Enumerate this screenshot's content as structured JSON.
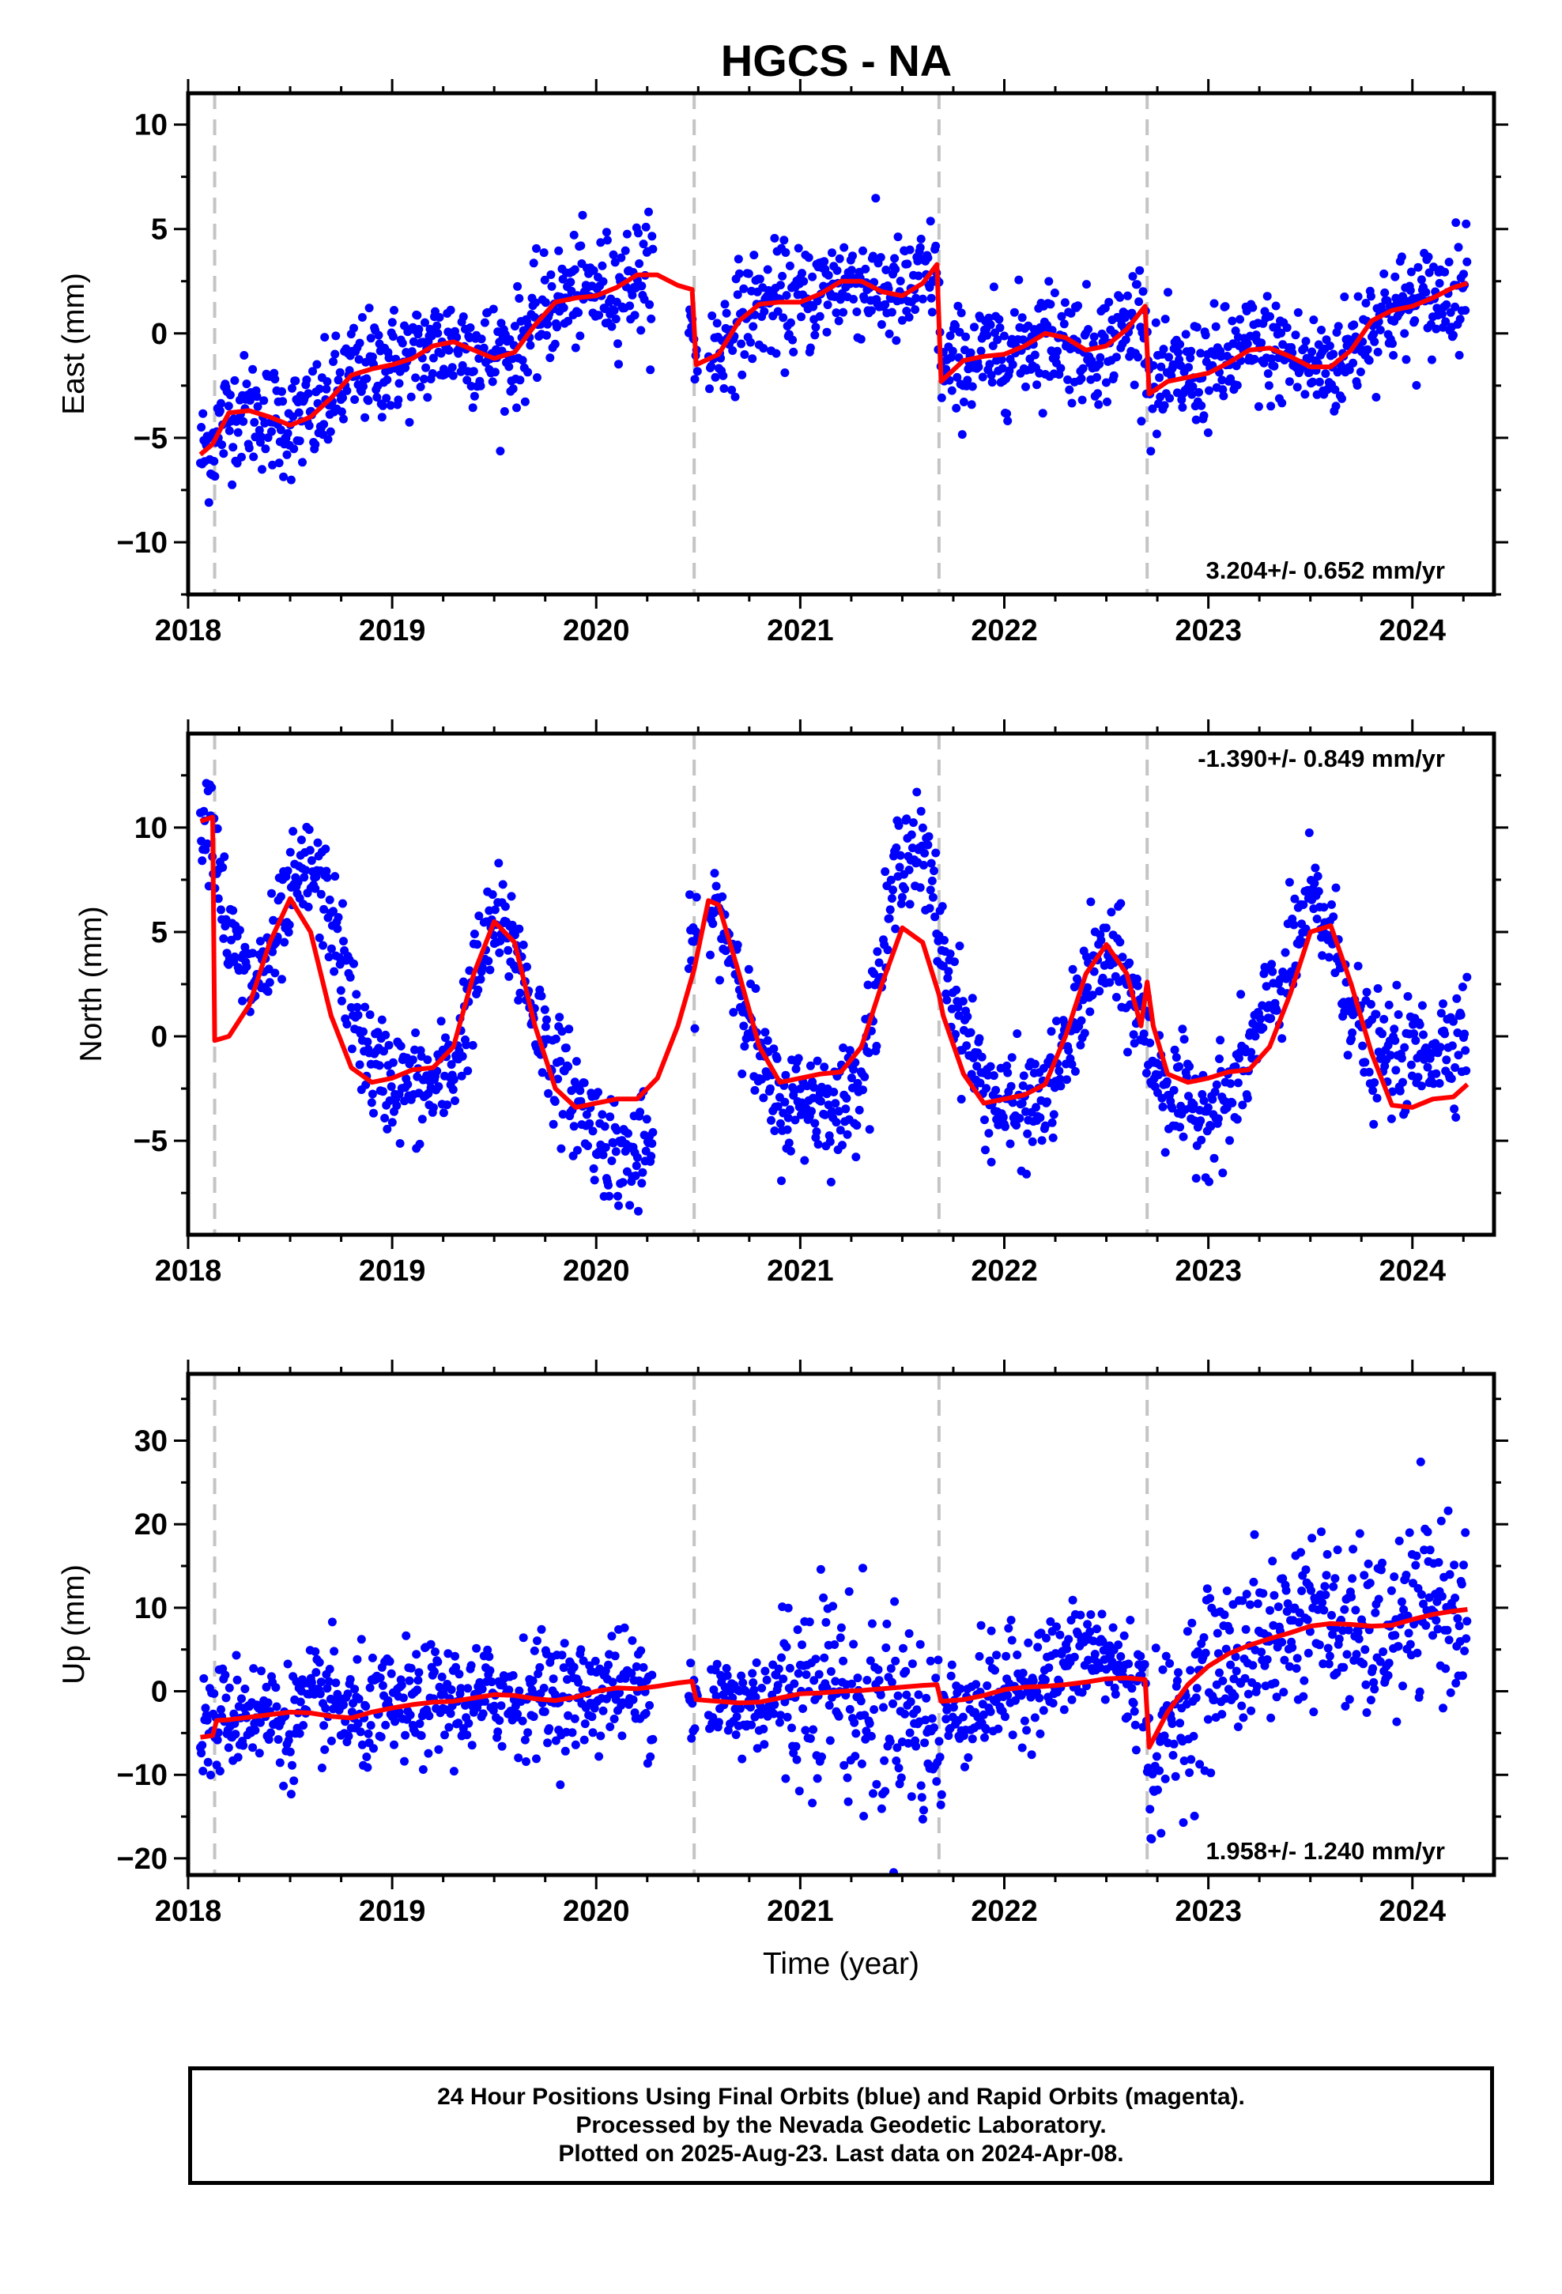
{
  "chart_data": [
    {
      "type": "scatter",
      "title": "HGCS - NA",
      "panel": "east",
      "ylabel": "East (mm)",
      "xlabel": "",
      "xlim": [
        2018.0,
        2024.4
      ],
      "ylim": [
        -12.5,
        11.5
      ],
      "x_ticks": [
        2018,
        2019,
        2020,
        2021,
        2022,
        2023,
        2024
      ],
      "y_ticks": [
        -10,
        -5,
        0,
        5,
        10
      ],
      "y_tick_labels": [
        "−10",
        "−5",
        "0",
        "5",
        "10"
      ],
      "rate_label": "3.204+/- 0.652 mm/yr",
      "rate_label_position": "bottom-right",
      "event_lines": [
        2018.13,
        2020.48,
        2021.68,
        2022.7
      ],
      "series": [
        {
          "kind": "points",
          "color": "#0000ff",
          "x": [
            2018.06,
            2018.12,
            2018.2,
            2018.3,
            2018.4,
            2018.5,
            2018.6,
            2018.7,
            2018.8,
            2018.9,
            2019.0,
            2019.1,
            2019.2,
            2019.3,
            2019.4,
            2019.5,
            2019.6,
            2019.7,
            2019.8,
            2019.9,
            2020.0,
            2020.1,
            2020.2,
            2020.3,
            2020.4,
            2020.5,
            2020.6,
            2020.7,
            2020.8,
            2020.9,
            2021.0,
            2021.1,
            2021.2,
            2021.3,
            2021.4,
            2021.5,
            2021.6,
            2021.66,
            2021.7,
            2021.8,
            2021.9,
            2022.0,
            2022.1,
            2022.2,
            2022.3,
            2022.4,
            2022.5,
            2022.6,
            2022.68,
            2022.72,
            2022.8,
            2022.9,
            2023.0,
            2023.1,
            2023.2,
            2023.3,
            2023.4,
            2023.5,
            2023.6,
            2023.7,
            2023.8,
            2023.9,
            2024.0,
            2024.1,
            2024.2,
            2024.27
          ],
          "y": [
            -5.8,
            -5.2,
            -3.8,
            -3.7,
            -4.0,
            -4.3,
            -4.1,
            -3.2,
            -2.0,
            -1.6,
            -1.4,
            -1.2,
            -0.7,
            -0.4,
            -0.7,
            -1.1,
            -0.9,
            0.4,
            1.5,
            2.0,
            2.0,
            2.3,
            2.8,
            2.7,
            2.2,
            -1.4,
            -0.7,
            0.7,
            1.4,
            1.5,
            1.5,
            2.0,
            2.5,
            2.5,
            2.0,
            1.8,
            2.5,
            3.1,
            -2.0,
            -1.3,
            -1.1,
            -0.9,
            -0.5,
            0.0,
            -0.2,
            -0.8,
            -0.6,
            0.3,
            1.2,
            -2.8,
            -2.2,
            -2.0,
            -1.8,
            -1.3,
            -0.8,
            -0.7,
            -1.1,
            -1.6,
            -1.6,
            -0.8,
            0.6,
            1.1,
            1.3,
            1.6,
            2.1,
            2.4
          ]
        },
        {
          "kind": "line",
          "color": "#ff0000",
          "x": [
            2018.06,
            2018.12,
            2018.2,
            2018.3,
            2018.4,
            2018.5,
            2018.6,
            2018.7,
            2018.8,
            2018.9,
            2019.0,
            2019.1,
            2019.2,
            2019.3,
            2019.4,
            2019.5,
            2019.6,
            2019.7,
            2019.8,
            2019.9,
            2020.0,
            2020.1,
            2020.2,
            2020.3,
            2020.4,
            2020.47,
            2020.49,
            2020.6,
            2020.7,
            2020.8,
            2020.9,
            2021.0,
            2021.1,
            2021.2,
            2021.3,
            2021.4,
            2021.5,
            2021.6,
            2021.67,
            2021.69,
            2021.8,
            2021.9,
            2022.0,
            2022.1,
            2022.2,
            2022.3,
            2022.4,
            2022.5,
            2022.6,
            2022.69,
            2022.71,
            2022.8,
            2022.9,
            2023.0,
            2023.1,
            2023.2,
            2023.3,
            2023.4,
            2023.5,
            2023.6,
            2023.7,
            2023.8,
            2023.9,
            2024.0,
            2024.1,
            2024.2,
            2024.27
          ],
          "y": [
            -5.8,
            -5.3,
            -3.8,
            -3.7,
            -4.0,
            -4.4,
            -4.0,
            -3.1,
            -2.0,
            -1.7,
            -1.5,
            -1.2,
            -0.6,
            -0.4,
            -0.8,
            -1.2,
            -0.9,
            0.4,
            1.5,
            1.7,
            1.8,
            2.2,
            2.8,
            2.8,
            2.3,
            2.1,
            -1.5,
            -1.0,
            0.6,
            1.4,
            1.5,
            1.5,
            1.9,
            2.5,
            2.5,
            2.0,
            1.8,
            2.4,
            3.3,
            -2.3,
            -1.3,
            -1.1,
            -1.0,
            -0.6,
            0.0,
            -0.2,
            -0.8,
            -0.6,
            0.2,
            1.3,
            -2.9,
            -2.3,
            -2.1,
            -1.9,
            -1.4,
            -0.8,
            -0.7,
            -1.1,
            -1.6,
            -1.6,
            -0.8,
            0.6,
            1.1,
            1.3,
            1.7,
            2.2,
            2.4
          ]
        }
      ]
    },
    {
      "type": "scatter",
      "panel": "north",
      "ylabel": "North (mm)",
      "xlabel": "",
      "xlim": [
        2018.0,
        2024.4
      ],
      "ylim": [
        -9.5,
        14.5
      ],
      "x_ticks": [
        2018,
        2019,
        2020,
        2021,
        2022,
        2023,
        2024
      ],
      "y_ticks": [
        -5,
        0,
        5,
        10
      ],
      "y_tick_labels": [
        "−5",
        "0",
        "5",
        "10"
      ],
      "rate_label": "-1.390+/- 0.849 mm/yr",
      "rate_label_position": "top-right",
      "event_lines": [
        2018.13,
        2020.48,
        2021.68,
        2022.7
      ],
      "series": [
        {
          "kind": "points",
          "color": "#0000ff",
          "x": [
            2018.06,
            2018.12,
            2018.2,
            2018.3,
            2018.4,
            2018.5,
            2018.6,
            2018.7,
            2018.8,
            2018.9,
            2019.0,
            2019.1,
            2019.2,
            2019.3,
            2019.4,
            2019.5,
            2019.6,
            2019.7,
            2019.8,
            2019.9,
            2020.0,
            2020.1,
            2020.2,
            2020.3,
            2020.4,
            2020.5,
            2020.6,
            2020.7,
            2020.8,
            2020.9,
            2021.0,
            2021.1,
            2021.2,
            2021.3,
            2021.4,
            2021.5,
            2021.6,
            2021.66,
            2021.7,
            2021.8,
            2021.9,
            2022.0,
            2022.1,
            2022.2,
            2022.3,
            2022.4,
            2022.5,
            2022.6,
            2022.68,
            2022.72,
            2022.8,
            2022.9,
            2023.0,
            2023.1,
            2023.2,
            2023.3,
            2023.4,
            2023.5,
            2023.6,
            2023.7,
            2023.8,
            2023.9,
            2024.0,
            2024.1,
            2024.2,
            2024.27
          ],
          "y": [
            11.0,
            10.5,
            4.5,
            2.5,
            3.5,
            6.5,
            8.0,
            6.0,
            1.5,
            -1.5,
            -2.0,
            -2.5,
            -2.5,
            -1.5,
            2.5,
            5.5,
            4.5,
            1.0,
            -1.5,
            -3.0,
            -4.5,
            -5.5,
            -6.0,
            -4.5,
            1.0,
            5.0,
            6.0,
            3.0,
            -1.5,
            -3.5,
            -3.0,
            -3.0,
            -3.5,
            -1.5,
            3.5,
            9.5,
            8.5,
            6.5,
            4.0,
            0.5,
            -2.5,
            -3.5,
            -3.5,
            -3.0,
            -1.0,
            2.5,
            4.0,
            2.5,
            0.5,
            -1.0,
            -2.5,
            -3.5,
            -3.5,
            -3.0,
            -1.0,
            1.5,
            3.5,
            6.5,
            5.0,
            1.5,
            -1.0,
            -1.0,
            -1.0,
            -0.5,
            0.0,
            0.5
          ]
        },
        {
          "kind": "line",
          "color": "#ff0000",
          "x": [
            2018.06,
            2018.12,
            2018.13,
            2018.2,
            2018.3,
            2018.4,
            2018.5,
            2018.6,
            2018.7,
            2018.8,
            2018.9,
            2019.0,
            2019.1,
            2019.2,
            2019.3,
            2019.4,
            2019.5,
            2019.6,
            2019.7,
            2019.8,
            2019.9,
            2020.0,
            2020.1,
            2020.2,
            2020.3,
            2020.4,
            2020.48,
            2020.55,
            2020.6,
            2020.7,
            2020.8,
            2020.9,
            2021.0,
            2021.1,
            2021.2,
            2021.3,
            2021.4,
            2021.5,
            2021.6,
            2021.68,
            2021.7,
            2021.8,
            2021.9,
            2022.0,
            2022.1,
            2022.2,
            2022.3,
            2022.4,
            2022.5,
            2022.6,
            2022.67,
            2022.7,
            2022.73,
            2022.8,
            2022.9,
            2023.0,
            2023.1,
            2023.2,
            2023.3,
            2023.4,
            2023.5,
            2023.6,
            2023.7,
            2023.8,
            2023.9,
            2024.0,
            2024.1,
            2024.2,
            2024.27
          ],
          "y": [
            10.3,
            10.5,
            -0.2,
            0.0,
            1.5,
            4.5,
            6.6,
            5.0,
            1.0,
            -1.5,
            -2.2,
            -2.0,
            -1.6,
            -1.5,
            -0.5,
            3.0,
            5.5,
            4.5,
            0.5,
            -2.5,
            -3.4,
            -3.2,
            -3.0,
            -3.0,
            -2.0,
            0.5,
            3.2,
            6.5,
            6.3,
            3.0,
            -0.5,
            -2.2,
            -2.0,
            -1.8,
            -1.7,
            -0.5,
            2.5,
            5.2,
            4.5,
            2.0,
            1.0,
            -1.8,
            -3.2,
            -3.0,
            -2.8,
            -2.3,
            0.0,
            3.0,
            4.4,
            3.0,
            0.5,
            2.6,
            0.5,
            -1.8,
            -2.2,
            -2.0,
            -1.7,
            -1.6,
            -0.5,
            2.0,
            5.0,
            5.3,
            2.5,
            -0.8,
            -3.3,
            -3.4,
            -3.0,
            -2.9,
            -2.3
          ]
        }
      ]
    },
    {
      "type": "scatter",
      "panel": "up",
      "ylabel": "Up (mm)",
      "xlabel": "Time (year)",
      "xlim": [
        2018.0,
        2024.4
      ],
      "ylim": [
        -22,
        38
      ],
      "x_ticks": [
        2018,
        2019,
        2020,
        2021,
        2022,
        2023,
        2024
      ],
      "y_ticks": [
        -20,
        -10,
        0,
        10,
        20,
        30
      ],
      "y_tick_labels": [
        "−20",
        "−10",
        "0",
        "10",
        "20",
        "30"
      ],
      "rate_label": "1.958+/- 1.240 mm/yr",
      "rate_label_position": "bottom-right",
      "event_lines": [
        2018.13,
        2020.48,
        2021.68,
        2022.7
      ],
      "series": [
        {
          "kind": "points",
          "color": "#0000ff",
          "x": [
            2018.06,
            2018.12,
            2018.2,
            2018.3,
            2018.4,
            2018.5,
            2018.6,
            2018.7,
            2018.8,
            2018.9,
            2019.0,
            2019.1,
            2019.2,
            2019.3,
            2019.4,
            2019.5,
            2019.6,
            2019.7,
            2019.8,
            2019.9,
            2020.0,
            2020.1,
            2020.2,
            2020.3,
            2020.4,
            2020.5,
            2020.6,
            2020.7,
            2020.8,
            2020.9,
            2021.0,
            2021.1,
            2021.2,
            2021.3,
            2021.4,
            2021.5,
            2021.6,
            2021.66,
            2021.7,
            2021.8,
            2021.9,
            2022.0,
            2022.1,
            2022.2,
            2022.3,
            2022.4,
            2022.5,
            2022.6,
            2022.68,
            2022.72,
            2022.8,
            2022.9,
            2023.0,
            2023.1,
            2023.2,
            2023.3,
            2023.4,
            2023.5,
            2023.6,
            2023.7,
            2023.8,
            2023.9,
            2024.0,
            2024.1,
            2024.2,
            2024.27
          ],
          "y": [
            -5,
            -4,
            -3,
            -2,
            -3,
            -4,
            -2,
            -1,
            -3,
            -3,
            -2,
            -2,
            -1,
            -1,
            -2,
            0,
            -1,
            0,
            0,
            -1,
            0,
            1,
            0,
            0,
            1,
            -1,
            -1,
            -2,
            -1,
            0,
            0,
            3,
            0,
            -2,
            -3,
            -1,
            -5,
            -6,
            -3,
            -2,
            -1,
            0,
            1,
            2,
            3,
            5,
            4,
            2,
            0,
            -9,
            -5,
            -1,
            2,
            4,
            5,
            6,
            8,
            10,
            8,
            7,
            6,
            7,
            9,
            11,
            10,
            10
          ]
        },
        {
          "kind": "line",
          "color": "#ff0000",
          "x": [
            2018.06,
            2018.12,
            2018.14,
            2018.2,
            2018.3,
            2018.4,
            2018.5,
            2018.6,
            2018.7,
            2018.8,
            2018.9,
            2019.0,
            2019.1,
            2019.2,
            2019.3,
            2019.4,
            2019.5,
            2019.6,
            2019.7,
            2019.8,
            2019.9,
            2020.0,
            2020.1,
            2020.2,
            2020.3,
            2020.4,
            2020.47,
            2020.49,
            2020.6,
            2020.7,
            2020.8,
            2020.9,
            2021.0,
            2021.1,
            2021.2,
            2021.3,
            2021.4,
            2021.5,
            2021.6,
            2021.67,
            2021.69,
            2021.8,
            2021.9,
            2022.0,
            2022.1,
            2022.2,
            2022.3,
            2022.4,
            2022.5,
            2022.6,
            2022.69,
            2022.71,
            2022.8,
            2022.9,
            2023.0,
            2023.1,
            2023.2,
            2023.3,
            2023.4,
            2023.5,
            2023.6,
            2023.7,
            2023.8,
            2023.9,
            2024.0,
            2024.1,
            2024.2,
            2024.27
          ],
          "y": [
            -5.5,
            -5.3,
            -3.5,
            -3.4,
            -3.1,
            -2.8,
            -2.5,
            -2.6,
            -3.0,
            -3.2,
            -2.5,
            -2.0,
            -1.6,
            -1.3,
            -1.2,
            -0.8,
            -0.4,
            -0.5,
            -0.9,
            -1.1,
            -0.7,
            0.0,
            0.4,
            0.3,
            0.6,
            1.0,
            1.2,
            -1.0,
            -1.2,
            -1.4,
            -1.3,
            -0.8,
            -0.3,
            -0.2,
            0.0,
            0.1,
            0.3,
            0.5,
            0.7,
            0.8,
            -1.2,
            -1.0,
            -0.5,
            0.2,
            0.5,
            0.6,
            0.8,
            1.1,
            1.5,
            1.6,
            1.4,
            -6.7,
            -2.5,
            0.8,
            3.0,
            4.5,
            5.5,
            6.3,
            7.0,
            7.8,
            8.1,
            8.0,
            7.8,
            7.9,
            8.6,
            9.2,
            9.6,
            9.8
          ]
        }
      ]
    }
  ],
  "caption": {
    "line1": "24 Hour Positions Using Final Orbits (blue) and Rapid Orbits (magenta).",
    "line2": "Processed by the Nevada Geodetic Laboratory.",
    "line3": "Plotted on 2025-Aug-23. Last data on 2024-Apr-08."
  }
}
